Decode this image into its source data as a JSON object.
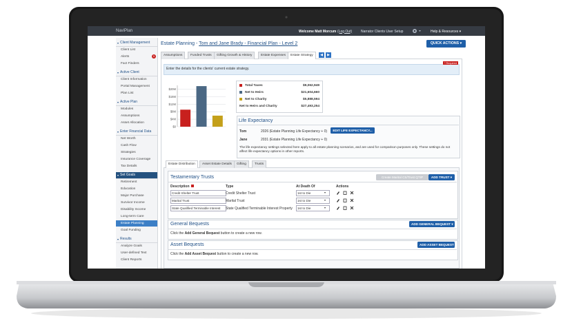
{
  "topbar": {
    "logo": "NaviPlan",
    "welcome": "Welcome Matt Morcum",
    "logout": "(Log Out)",
    "client": "Narrator Clients User Setup",
    "help": "Help & Resources"
  },
  "sidebar": {
    "sections": [
      {
        "title": "Client Management",
        "items": [
          "Client List",
          "Alerts",
          "Fact Finders"
        ],
        "badge": "5"
      },
      {
        "title": "Active Client",
        "items": [
          "Client Information",
          "Portal Management",
          "Plan List"
        ]
      },
      {
        "title": "Active Plan",
        "items": [
          "Modules",
          "Assumptions",
          "Asset Allocation"
        ]
      },
      {
        "title": "Enter Financial Data",
        "items": [
          "Net Worth",
          "Cash Flow",
          "Strategies",
          "Insurance Coverage",
          "Tax Details"
        ]
      },
      {
        "title": "Set Goals",
        "items": [
          "Retirement",
          "Education",
          "Major Purchase",
          "Survivor Income",
          "Disability Income",
          "Long-term Care",
          "Estate Planning",
          "Goal Funding"
        ]
      },
      {
        "title": "Results",
        "items": [
          "Analyze Goals",
          "User-defined Text",
          "Client Reports"
        ]
      }
    ]
  },
  "header": {
    "title": "Estate Planning - ",
    "plan_link": "Tom and Jane Brady - Financial Plan - Level 2",
    "quick_actions": "QUICK ACTIONS"
  },
  "tabs": [
    "Assumptions",
    "Funded Trusts",
    "Gifting Growth & History",
    "Estate Expenses",
    "Estate Strategy"
  ],
  "info": {
    "text": "Enter the details for the clients' current estate strategy.",
    "required": "* Required"
  },
  "chart_data": {
    "type": "bar",
    "categories": [
      "Total Taxes",
      "Net to Heirs",
      "Net to Charity"
    ],
    "values": [
      9.062949,
      21.60466,
      5.888594
    ],
    "value_labels": [
      "$9,062,949",
      "$21,604,660",
      "$5,888,594"
    ],
    "colors": [
      "#c8201e",
      "#4b6884",
      "#c4a01a"
    ],
    "ylim": [
      0,
      22
    ],
    "yticks": [
      {
        "value": 0,
        "label": "$0"
      },
      {
        "value": 4,
        "label": "$4M"
      },
      {
        "value": 8,
        "label": "$8M"
      },
      {
        "value": 12,
        "label": "$12M"
      },
      {
        "value": 16,
        "label": "$16M"
      },
      {
        "value": 20,
        "label": "$20M"
      }
    ],
    "grid": true,
    "total": {
      "label": "Net to Heirs and Charity",
      "value_label": "$27,493,254"
    }
  },
  "life_expectancy": {
    "title": "Life Expectancy",
    "rows": [
      {
        "name": "Tom",
        "text": "2026 (Estate Planning Life Expectancy + 0)"
      },
      {
        "name": "Jane",
        "text": "2031 (Estate Planning Life Expectancy + 0)"
      }
    ],
    "button": "EDIT LIFE EXPECTANCY...",
    "note": "The life expectancy settings selected here apply to all estate planning scenarios, and are used for comparison purposes only. These settings do not affect life expectancy options in other reports."
  },
  "subtabs": [
    "Estate Distribution",
    "Asset Estate Details",
    "Gifting",
    "Trusts"
  ],
  "trusts": {
    "title": "Testamentary Trusts",
    "create_button": "Create Marital CS/Trust QTIP",
    "add_button": "ADD TRUST",
    "columns": [
      "Description",
      "Type",
      "At Death Of",
      "Actions"
    ],
    "rows": [
      [
        "Credit Shelter Trust",
        "Credit Shelter Trust",
        "1st to Die"
      ],
      [
        "Marital Trust",
        "Marital Trust",
        "1st to Die"
      ],
      [
        "State Qualified Terminable Interest",
        "State Qualified Terminable Interest Property",
        "1st to Die"
      ]
    ]
  },
  "general_bequests": {
    "title": "General Bequests",
    "button": "ADD GENERAL BEQUEST",
    "text_pre": "Click the ",
    "text_bold": "Add General Bequest",
    "text_post": " button to create a new row."
  },
  "asset_bequests": {
    "title": "Asset Bequests",
    "button": "ADD ASSET BEQUEST",
    "text_pre": "Click the ",
    "text_bold": "Add Asset Bequest",
    "text_post": " button to create a new row."
  }
}
